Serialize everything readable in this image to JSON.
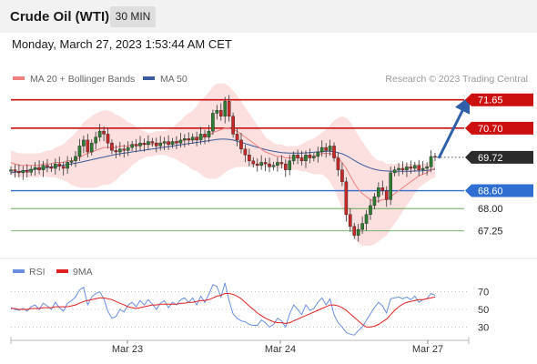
{
  "header": {
    "title": "Crude Oil (WTI)",
    "timeframe": "30 MIN",
    "datetime": "Monday, March 27, 2023 1:53:44 AM CET"
  },
  "colors": {
    "resistance": "#cc1010",
    "support": "#2e6fd1",
    "target_green": "#4d9e3a",
    "current_price_bg": "#2b2b2b",
    "bollinger_fill": "#fbd4d4",
    "ma20": "#f08080",
    "ma50": "#3b5b9c",
    "candle_up": "#2e7d32",
    "candle_down": "#c62828",
    "rsi_line": "#6b8fe0",
    "rsi_ma": "#e02020",
    "arrow": "#2e5fa8"
  },
  "chart_data": [
    {
      "type": "candlestick",
      "legend": [
        {
          "name": "MA 20 + Bollinger Bands",
          "color": "#f08080"
        },
        {
          "name": "MA 50",
          "color": "#3b5b9c"
        }
      ],
      "copyright": "Research © 2023 Trading Central",
      "x_ticks": [
        "Mar 23",
        "Mar 24",
        "Mar 27"
      ],
      "ylim": [
        66.6,
        72.1
      ],
      "levels": [
        {
          "label": "71.65",
          "value": 71.65,
          "kind": "resistance"
        },
        {
          "label": "70.70",
          "value": 70.7,
          "kind": "resistance"
        },
        {
          "label": "69.72",
          "value": 69.72,
          "kind": "current"
        },
        {
          "label": "68.60",
          "value": 68.6,
          "kind": "support"
        },
        {
          "label": "68.00",
          "value": 68.0,
          "kind": "target"
        },
        {
          "label": "67.25",
          "value": 67.25,
          "kind": "target"
        }
      ],
      "close": [
        69.3,
        69.25,
        69.2,
        69.28,
        69.22,
        69.32,
        69.38,
        69.3,
        69.45,
        69.4,
        69.35,
        69.5,
        69.42,
        69.35,
        69.55,
        69.6,
        69.75,
        70.1,
        70.3,
        69.9,
        70.2,
        70.4,
        70.6,
        70.5,
        70.2,
        69.95,
        69.9,
        70.0,
        69.95,
        70.05,
        70.15,
        70.1,
        70.2,
        70.15,
        70.25,
        70.2,
        70.1,
        70.2,
        70.25,
        70.15,
        70.25,
        70.2,
        70.3,
        70.35,
        70.3,
        70.4,
        70.3,
        70.5,
        70.4,
        70.6,
        71.2,
        71.3,
        71.1,
        71.6,
        71.1,
        70.5,
        70.3,
        70.0,
        69.8,
        69.6,
        69.5,
        69.45,
        69.55,
        69.5,
        69.4,
        69.45,
        69.55,
        69.5,
        69.3,
        69.6,
        69.8,
        69.7,
        69.6,
        69.8,
        69.7,
        69.75,
        69.9,
        70.05,
        69.95,
        70.1,
        69.7,
        69.3,
        68.9,
        67.8,
        67.4,
        67.1,
        67.3,
        67.5,
        67.8,
        68.1,
        68.4,
        68.7,
        68.6,
        68.3,
        69.2,
        69.3,
        69.35,
        69.3,
        69.4,
        69.35,
        69.45,
        69.3,
        69.35,
        69.4,
        69.75,
        69.72
      ],
      "x_range": {
        "first_tick": "Mar 23",
        "ticks": 3
      },
      "ma20": [
        69.55,
        69.5,
        69.45,
        69.45,
        69.45,
        69.45,
        69.45,
        69.45,
        69.5,
        69.5,
        69.5,
        69.55,
        69.55,
        69.55,
        69.6,
        69.6,
        69.65,
        69.7,
        69.8,
        69.85,
        69.9,
        69.95,
        70.0,
        70.05,
        70.05,
        70.05,
        70.05,
        70.1,
        70.1,
        70.1,
        70.15,
        70.15,
        70.15,
        70.15,
        70.15,
        70.15,
        70.2,
        70.2,
        70.2,
        70.2,
        70.2,
        70.25,
        70.25,
        70.3,
        70.3,
        70.3,
        70.35,
        70.4,
        70.4,
        70.45,
        70.55,
        70.6,
        70.65,
        70.7,
        70.7,
        70.65,
        70.6,
        70.5,
        70.4,
        70.3,
        70.2,
        70.1,
        70.0,
        69.9,
        69.85,
        69.8,
        69.75,
        69.75,
        69.7,
        69.7,
        69.7,
        69.7,
        69.7,
        69.75,
        69.75,
        69.75,
        69.8,
        69.85,
        69.85,
        69.85,
        69.8,
        69.7,
        69.55,
        69.35,
        69.1,
        68.85,
        68.65,
        68.5,
        68.4,
        68.3,
        68.25,
        68.25,
        68.3,
        68.3,
        68.4,
        68.5,
        68.6,
        68.7,
        68.8,
        68.9,
        69.0,
        69.1,
        69.15,
        69.2,
        69.3,
        69.35
      ],
      "ma50": [
        69.2,
        69.22,
        69.24,
        69.26,
        69.28,
        69.3,
        69.32,
        69.34,
        69.36,
        69.38,
        69.4,
        69.42,
        69.44,
        69.46,
        69.48,
        69.5,
        69.52,
        69.55,
        69.58,
        69.61,
        69.64,
        69.67,
        69.7,
        69.73,
        69.76,
        69.79,
        69.82,
        69.84,
        69.86,
        69.88,
        69.9,
        69.92,
        69.94,
        69.96,
        69.98,
        70.0,
        70.02,
        70.04,
        70.06,
        70.08,
        70.1,
        70.12,
        70.14,
        70.16,
        70.18,
        70.2,
        70.22,
        70.24,
        70.26,
        70.28,
        70.3,
        70.32,
        70.33,
        70.33,
        70.32,
        70.3,
        70.26,
        70.22,
        70.18,
        70.14,
        70.1,
        70.06,
        70.02,
        69.98,
        69.95,
        69.92,
        69.9,
        69.88,
        69.87,
        69.86,
        69.86,
        69.86,
        69.86,
        69.87,
        69.88,
        69.89,
        69.9,
        69.91,
        69.92,
        69.92,
        69.91,
        69.88,
        69.84,
        69.78,
        69.7,
        69.62,
        69.54,
        69.47,
        69.41,
        69.36,
        69.32,
        69.29,
        69.27,
        69.26,
        69.25,
        69.25,
        69.25,
        69.25,
        69.25,
        69.25,
        69.26,
        69.26,
        69.27,
        69.28,
        69.3,
        69.32
      ],
      "bb_width": [
        0.4,
        0.4,
        0.4,
        0.4,
        0.4,
        0.4,
        0.4,
        0.4,
        0.4,
        0.45,
        0.45,
        0.5,
        0.55,
        0.6,
        0.7,
        0.8,
        0.9,
        1.0,
        1.1,
        1.15,
        1.2,
        1.25,
        1.25,
        1.25,
        1.25,
        1.2,
        1.1,
        1.0,
        0.9,
        0.8,
        0.7,
        0.6,
        0.5,
        0.45,
        0.4,
        0.4,
        0.4,
        0.4,
        0.4,
        0.45,
        0.5,
        0.6,
        0.7,
        0.8,
        0.9,
        1.0,
        1.1,
        1.25,
        1.35,
        1.45,
        1.55,
        1.6,
        1.55,
        1.5,
        1.4,
        1.3,
        1.2,
        1.1,
        1.0,
        0.9,
        0.8,
        0.7,
        0.6,
        0.5,
        0.45,
        0.4,
        0.4,
        0.4,
        0.4,
        0.4,
        0.4,
        0.4,
        0.45,
        0.5,
        0.55,
        0.6,
        0.65,
        0.7,
        0.8,
        0.95,
        1.15,
        1.35,
        1.55,
        1.7,
        1.8,
        1.85,
        1.8,
        1.75,
        1.65,
        1.55,
        1.45,
        1.35,
        1.3,
        1.2,
        1.1,
        1.0,
        0.9,
        0.8,
        0.7,
        0.6,
        0.5,
        0.4,
        0.35,
        0.3,
        0.3,
        0.3
      ]
    },
    {
      "type": "line",
      "series": [
        {
          "name": "RSI",
          "color": "#6b8fe0",
          "values": [
            52,
            50,
            49,
            51,
            48,
            53,
            55,
            50,
            57,
            54,
            50,
            58,
            52,
            48,
            57,
            60,
            64,
            72,
            75,
            55,
            64,
            68,
            70,
            62,
            48,
            40,
            42,
            50,
            47,
            55,
            58,
            53,
            60,
            55,
            61,
            56,
            50,
            57,
            60,
            52,
            58,
            55,
            61,
            63,
            58,
            63,
            55,
            65,
            58,
            67,
            78,
            76,
            64,
            80,
            60,
            45,
            40,
            37,
            36,
            33,
            32,
            32,
            38,
            35,
            30,
            33,
            40,
            37,
            30,
            45,
            55,
            50,
            44,
            55,
            49,
            51,
            58,
            63,
            55,
            62,
            44,
            35,
            30,
            24,
            22,
            21,
            26,
            30,
            38,
            45,
            52,
            58,
            54,
            46,
            62,
            63,
            64,
            62,
            64,
            61,
            65,
            58,
            61,
            62,
            68,
            66
          ]
        },
        {
          "name": "9MA",
          "color": "#e02020",
          "values": [
            51,
            51,
            50,
            50,
            50,
            51,
            51,
            51,
            52,
            52,
            52,
            53,
            53,
            53,
            53,
            54,
            55,
            57,
            59,
            60,
            61,
            62,
            63,
            63,
            62,
            61,
            59,
            57,
            55,
            53,
            52,
            51,
            52,
            53,
            54,
            55,
            55,
            56,
            56,
            56,
            56,
            56,
            57,
            57,
            58,
            58,
            59,
            60,
            60,
            61,
            63,
            65,
            66,
            68,
            68,
            67,
            65,
            62,
            58,
            54,
            50,
            46,
            43,
            40,
            38,
            36,
            35,
            35,
            34,
            35,
            37,
            39,
            41,
            43,
            45,
            47,
            49,
            51,
            53,
            55,
            55,
            54,
            52,
            49,
            45,
            41,
            37,
            33,
            30,
            30,
            31,
            33,
            36,
            39,
            44,
            49,
            53,
            56,
            58,
            59,
            60,
            61,
            61,
            62,
            63,
            64
          ]
        }
      ],
      "y_ticks": [
        70,
        50,
        30
      ],
      "ylim": [
        15,
        85
      ]
    }
  ]
}
